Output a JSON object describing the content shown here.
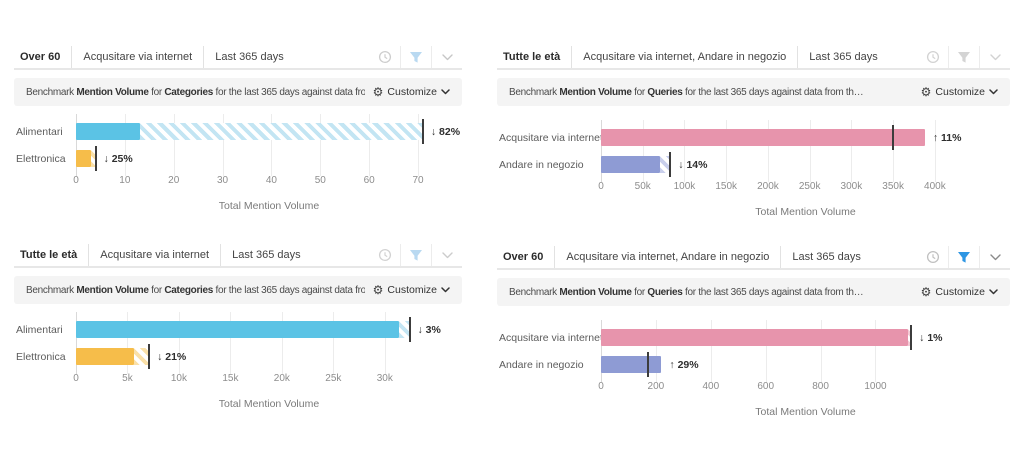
{
  "icons": {
    "gear": "⚙"
  },
  "panels": [
    {
      "position": "top-left",
      "tabs": [
        "Over 60",
        "Acqusitare via internet",
        "Last 365 days"
      ],
      "header_icons": {
        "clock_color": "#cdcdcd",
        "filter_color": "#b9d9f1",
        "chevron_color": "#c6c6c6"
      },
      "benchmark": {
        "segments": [
          {
            "text": "Benchmark ",
            "bold": false
          },
          {
            "text": "Mention Volume",
            "bold": true
          },
          {
            "text": " for ",
            "bold": false
          },
          {
            "text": "Categories",
            "bold": true
          },
          {
            "text": " for the last 365 days against data from…",
            "bold": false
          }
        ],
        "customize_label": "Customize"
      },
      "chart_data": {
        "type": "bar",
        "orientation": "horizontal",
        "categories": [
          "Alimentari",
          "Elettronica"
        ],
        "values": [
          13,
          3
        ],
        "benchmark_values": [
          71,
          4
        ],
        "changes": [
          {
            "direction": "down",
            "percent": 82,
            "label": "↓ 82%"
          },
          {
            "direction": "down",
            "percent": 25,
            "label": "↓ 25%"
          }
        ],
        "bar_colors": [
          "#5bc3e5",
          "#f6bd4a"
        ],
        "hatch_colors": [
          "#c3e5f3",
          "#fae0a8"
        ],
        "tick_values": [
          0,
          10,
          20,
          30,
          40,
          50,
          60,
          70
        ],
        "tick_labels": [
          "0",
          "10",
          "20",
          "30",
          "40",
          "50",
          "60",
          "70"
        ],
        "domain_max": 79,
        "xlabel": "Total Mention Volume"
      }
    },
    {
      "position": "top-right",
      "tabs": [
        "Tutte le età",
        "Acqusitare via internet, Andare in negozio",
        "Last 365 days"
      ],
      "header_icons": {
        "clock_color": "#d2d2d2",
        "filter_color": "#d4d4d4",
        "chevron_color": "#d2d2d2"
      },
      "benchmark": {
        "segments": [
          {
            "text": "Benchmark ",
            "bold": false
          },
          {
            "text": "Mention Volume",
            "bold": true
          },
          {
            "text": " for ",
            "bold": false
          },
          {
            "text": "Queries",
            "bold": true
          },
          {
            "text": " for the last 365 days against data from th…",
            "bold": false
          }
        ],
        "customize_label": "Customize"
      },
      "chart_data": {
        "type": "bar",
        "orientation": "horizontal",
        "categories": [
          "Acqusitare via internet",
          "Andare in negozio"
        ],
        "values": [
          388000,
          71000
        ],
        "benchmark_values": [
          350000,
          83000
        ],
        "changes": [
          {
            "direction": "up",
            "percent": 11,
            "label": "↑ 11%"
          },
          {
            "direction": "down",
            "percent": 14,
            "label": "↓ 14%"
          }
        ],
        "bar_colors": [
          "#e794ac",
          "#8e9bd4"
        ],
        "hatch_colors": [
          "#f3c9d5",
          "#c9cfec"
        ],
        "tick_values": [
          0,
          50000,
          100000,
          150000,
          200000,
          250000,
          300000,
          350000,
          400000
        ],
        "tick_labels": [
          "0",
          "50k",
          "100k",
          "150k",
          "200k",
          "250k",
          "300k",
          "350k",
          "400k"
        ],
        "domain_max": 490000,
        "xlabel": "Total Mention Volume"
      }
    },
    {
      "position": "bottom-left",
      "tabs": [
        "Tutte le età",
        "Acqusitare via internet",
        "Last 365 days"
      ],
      "header_icons": {
        "clock_color": "#d2d2d2",
        "filter_color": "#b9d9f1",
        "chevron_color": "#cccccc"
      },
      "benchmark": {
        "segments": [
          {
            "text": "Benchmark ",
            "bold": false
          },
          {
            "text": "Mention Volume",
            "bold": true
          },
          {
            "text": " for ",
            "bold": false
          },
          {
            "text": "Categories",
            "bold": true
          },
          {
            "text": " for the last 365 days against data from…",
            "bold": false
          }
        ],
        "customize_label": "Customize"
      },
      "chart_data": {
        "type": "bar",
        "orientation": "horizontal",
        "categories": [
          "Alimentari",
          "Elettronica"
        ],
        "values": [
          31400,
          5600
        ],
        "benchmark_values": [
          32400,
          7100
        ],
        "changes": [
          {
            "direction": "down",
            "percent": 3,
            "label": "↓ 3%"
          },
          {
            "direction": "down",
            "percent": 21,
            "label": "↓ 21%"
          }
        ],
        "bar_colors": [
          "#5bc3e5",
          "#f6bd4a"
        ],
        "hatch_colors": [
          "#c3e5f3",
          "#fae0a8"
        ],
        "tick_values": [
          0,
          5000,
          10000,
          15000,
          20000,
          25000,
          30000
        ],
        "tick_labels": [
          "0",
          "5k",
          "10k",
          "15k",
          "20k",
          "25k",
          "30k"
        ],
        "domain_max": 37500,
        "xlabel": "Total Mention Volume"
      }
    },
    {
      "position": "bottom-right",
      "tabs": [
        "Over 60",
        "Acqusitare via internet, Andare in negozio",
        "Last 365 days"
      ],
      "header_icons": {
        "clock_color": "#c0c0c0",
        "filter_color": "#2e96e3",
        "chevron_color": "#8a8a8a"
      },
      "benchmark": {
        "segments": [
          {
            "text": "Benchmark ",
            "bold": false
          },
          {
            "text": "Mention Volume",
            "bold": true
          },
          {
            "text": " for ",
            "bold": false
          },
          {
            "text": "Queries",
            "bold": true
          },
          {
            "text": " for the last 365 days against data from th…",
            "bold": false
          }
        ],
        "customize_label": "Customize"
      },
      "chart_data": {
        "type": "bar",
        "orientation": "horizontal",
        "categories": [
          "Acqusitare via internet",
          "Andare in negozio"
        ],
        "values": [
          1120,
          220
        ],
        "benchmark_values": [
          1130,
          170
        ],
        "changes": [
          {
            "direction": "down",
            "percent": 1,
            "label": "↓ 1%"
          },
          {
            "direction": "up",
            "percent": 29,
            "label": "↑ 29%"
          }
        ],
        "bar_colors": [
          "#e794ac",
          "#8e9bd4"
        ],
        "hatch_colors": [
          "#f3c9d5",
          "#c9cfec"
        ],
        "tick_values": [
          0,
          200,
          400,
          600,
          800,
          1000
        ],
        "tick_labels": [
          "0",
          "200",
          "400",
          "600",
          "800",
          "1000"
        ],
        "domain_max": 1490,
        "xlabel": "Total Mention Volume"
      }
    }
  ]
}
